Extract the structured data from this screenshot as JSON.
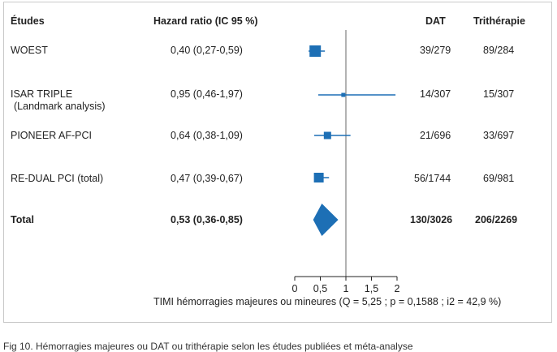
{
  "headers": {
    "study": "Études",
    "hr": "Hazard ratio (IC 95 %)",
    "dat": "DAT",
    "tri": "Trithérapie"
  },
  "rows": [
    {
      "name": "WOEST",
      "hr_text": "0,40 (0,27-0,59)",
      "dat": "39/279",
      "tri": "89/284"
    },
    {
      "name": "ISAR TRIPLE",
      "subname": "(Landmark analysis)",
      "hr_text": "0,95 (0,46-1,97)",
      "dat": "14/307",
      "tri": "15/307"
    },
    {
      "name": "PIONEER AF-PCI",
      "hr_text": "0,64 (0,38-1,09)",
      "dat": "21/696",
      "tri": "33/697"
    },
    {
      "name": "RE-DUAL PCI (total)",
      "hr_text": "0,47 (0,39-0,67)",
      "dat": "56/1744",
      "tri": "69/981"
    },
    {
      "name": "Total",
      "hr_text": "0,53 (0,36-0,85)",
      "dat": "130/3026",
      "tri": "206/2269",
      "bold": true
    }
  ],
  "axis_label": "TIMI hémorragies majeures ou mineures (Q = 5,25 ; p = 0,1588 ; i2 = 42,9 %)",
  "caption": "Fig 10. Hémorragies majeures ou DAT ou trithérapie selon les études publiées et méta-analyse",
  "colors": {
    "marker": "#1d6fb5",
    "reference_line": "#8a8a8a",
    "axis": "#222222"
  },
  "chart_data": {
    "type": "forest",
    "reference_value": 1,
    "xlim": [
      0,
      2
    ],
    "ticks": [
      0,
      0.5,
      1,
      1.5,
      2
    ],
    "tick_labels": [
      "0",
      "0,5",
      "1",
      "1,5",
      "2"
    ],
    "points": [
      {
        "study": "WOEST",
        "hr": 0.4,
        "lo": 0.27,
        "hi": 0.59
      },
      {
        "study": "ISAR TRIPLE",
        "hr": 0.95,
        "lo": 0.46,
        "hi": 1.97
      },
      {
        "study": "PIONEER AF-PCI",
        "hr": 0.64,
        "lo": 0.38,
        "hi": 1.09
      },
      {
        "study": "RE-DUAL PCI (total)",
        "hr": 0.47,
        "lo": 0.39,
        "hi": 0.67
      },
      {
        "study": "Total",
        "hr": 0.53,
        "lo": 0.36,
        "hi": 0.85,
        "pooled": true
      }
    ]
  }
}
